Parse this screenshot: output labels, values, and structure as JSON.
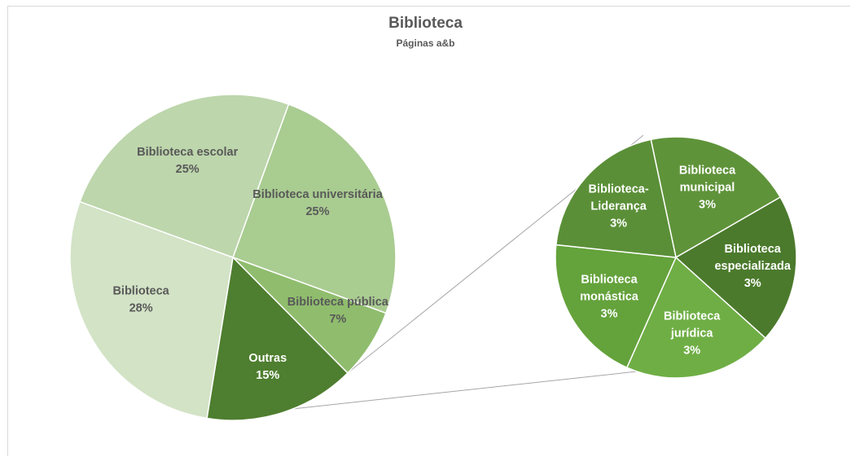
{
  "chart_data": {
    "type": "pie",
    "variant": "pie-of-pie",
    "title": "Biblioteca",
    "subtitle": "Páginas a&b",
    "main_pie": {
      "slices": [
        {
          "label": "Biblioteca universitária",
          "value_label": "25%",
          "value": 25,
          "color": "#a9cc91"
        },
        {
          "label": "Biblioteca pública",
          "value_label": "7%",
          "value": 7,
          "color": "#8fbd6d"
        },
        {
          "label": "Outras",
          "value_label": "15%",
          "value": 15,
          "color": "#4e7e2f"
        },
        {
          "label": "Biblioteca",
          "value_label": "28%",
          "value": 28,
          "color": "#d3e3c6"
        },
        {
          "label": "Biblioteca escolar",
          "value_label": "25%",
          "value": 25,
          "color": "#bdd6ac"
        }
      ]
    },
    "secondary_pie": {
      "parent": "Outras",
      "slices": [
        {
          "label_lines": [
            "Biblioteca",
            "municipal"
          ],
          "value_label": "3%",
          "value": 3,
          "color": "#5f933a"
        },
        {
          "label_lines": [
            "Biblioteca",
            "especializada"
          ],
          "value_label": "3%",
          "value": 3,
          "color": "#4b7a2c"
        },
        {
          "label_lines": [
            "Biblioteca",
            "jurídica"
          ],
          "value_label": "3%",
          "value": 3,
          "color": "#6fae45"
        },
        {
          "label_lines": [
            "Biblioteca",
            "monástica"
          ],
          "value_label": "3%",
          "value": 3,
          "color": "#64a23b"
        },
        {
          "label_lines": [
            "Biblioteca-",
            "Liderança"
          ],
          "value_label": "3%",
          "value": 3,
          "color": "#5a8f37"
        }
      ]
    }
  }
}
